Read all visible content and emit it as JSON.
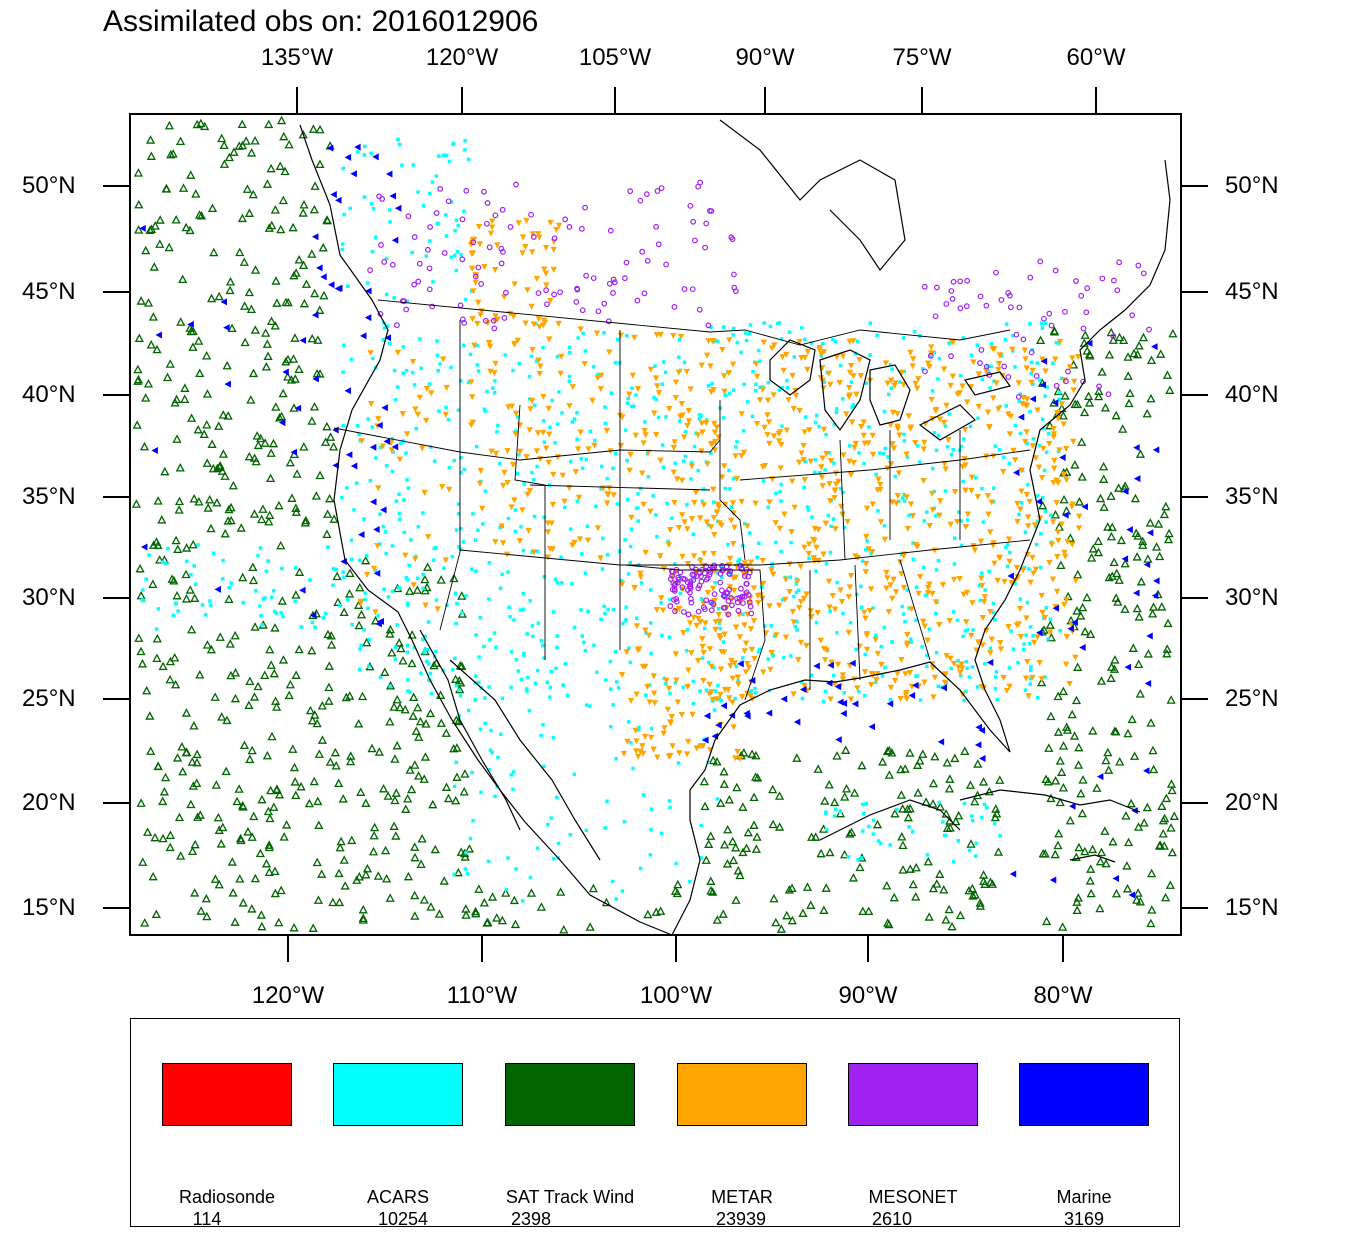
{
  "title": "Assimilated obs on: 2016012906",
  "axes": {
    "top_longitudes": [
      "135°W",
      "120°W",
      "105°W",
      "90°W",
      "75°W",
      "60°W"
    ],
    "bottom_longitudes": [
      "120°W",
      "110°W",
      "100°W",
      "90°W",
      "80°W"
    ],
    "latitudes": [
      "50°N",
      "45°N",
      "40°N",
      "35°N",
      "30°N",
      "25°N",
      "20°N",
      "15°N"
    ]
  },
  "legend": [
    {
      "name": "Radiosonde",
      "count": "114",
      "color": "#ff0000"
    },
    {
      "name": "ACARS",
      "count": "10254",
      "color": "#00ffff"
    },
    {
      "name": "SAT Track Wind",
      "count": "2398",
      "color": "#006400"
    },
    {
      "name": "METAR",
      "count": "23939",
      "color": "#ffa500"
    },
    {
      "name": "MESONET",
      "count": "2610",
      "color": "#a020f0"
    },
    {
      "name": "Marine",
      "count": "3169",
      "color": "#0000ff"
    }
  ],
  "colors": {
    "coastline": "#000000",
    "frame": "#000000"
  }
}
